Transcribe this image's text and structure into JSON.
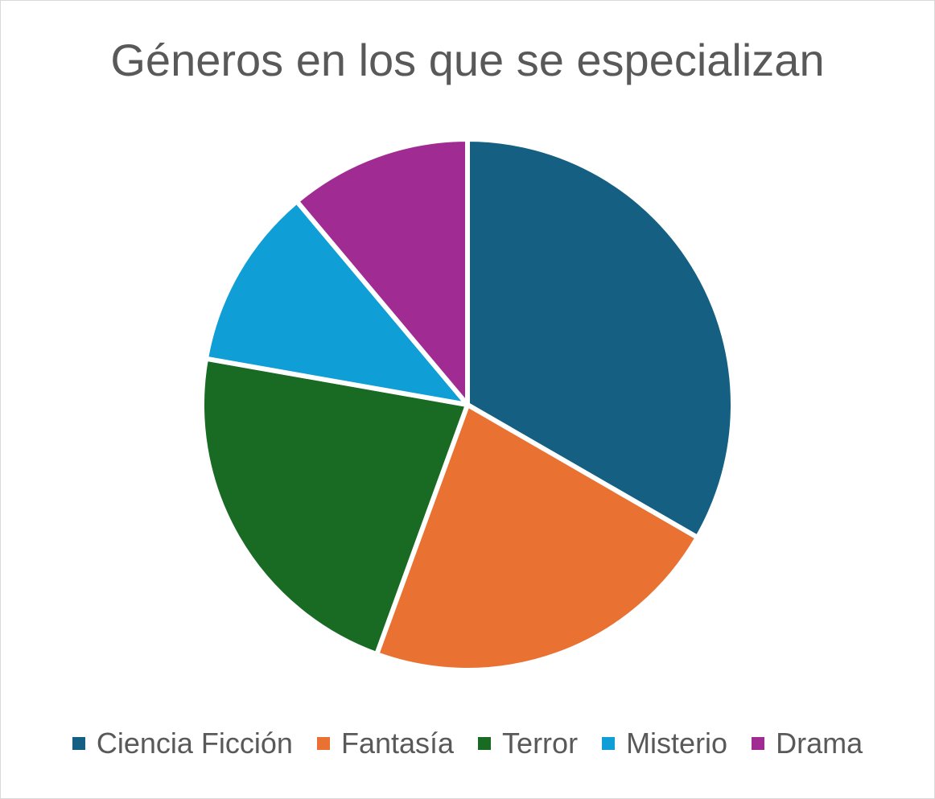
{
  "chart_data": {
    "type": "pie",
    "title": "Géneros en los que se especializan",
    "categories": [
      "Ciencia Ficción",
      "Fantasía",
      "Terror",
      "Misterio",
      "Drama"
    ],
    "values": [
      33.3,
      22.2,
      22.2,
      11.1,
      11.1
    ],
    "colors": [
      "#156082",
      "#E97132",
      "#196B24",
      "#0F9ED5",
      "#A02B93"
    ],
    "legend_position": "bottom",
    "slice_separator_color": "#ffffff"
  }
}
